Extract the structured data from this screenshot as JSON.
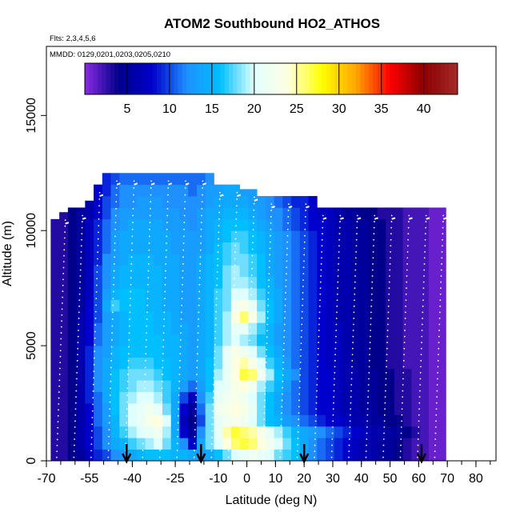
{
  "chart_data": {
    "type": "heatmap",
    "title": "ATOM2 Southbound HO2_ATHOS",
    "flights_note": "Flts: 2,3,4,5,6",
    "dates_note": "MMDD: 0129,0201,0203,0205,0210",
    "xlabel": "Latitude (deg N)",
    "ylabel": "Altitude (m)",
    "xlim": [
      -70,
      87
    ],
    "ylim": [
      0,
      18000
    ],
    "x_ticks": [
      -70,
      -55,
      -40,
      -25,
      -10,
      0,
      10,
      20,
      30,
      40,
      50,
      60,
      70,
      80
    ],
    "y_ticks": [
      0,
      5000,
      10000,
      15000
    ],
    "colorbar": {
      "range": [
        0,
        44
      ],
      "ticks": [
        5,
        10,
        15,
        20,
        25,
        30,
        35,
        40
      ],
      "colors": [
        "#8a2be2",
        "#00008b",
        "#0000cd",
        "#1e90ff",
        "#00bfff",
        "#e0ffff",
        "#ffffe0",
        "#ffff00",
        "#ffa500",
        "#ff0000",
        "#8b0000",
        "#a52a2a"
      ],
      "placement": "top"
    },
    "arrow_latitudes": [
      -42,
      -16,
      20,
      61
    ],
    "lat_columns": [
      -67,
      -64,
      -61,
      -58,
      -55,
      -52,
      -49,
      -46,
      -43,
      -40,
      -37,
      -34,
      -31,
      -28,
      -25,
      -22,
      -19,
      -16,
      -13,
      -10,
      -7,
      -4,
      -1,
      2,
      5,
      8,
      11,
      14,
      17,
      20,
      23,
      26,
      29,
      32,
      35,
      38,
      41,
      44,
      47,
      50,
      53,
      56,
      59,
      62,
      65,
      68
    ],
    "column_tops_m": [
      10500,
      10800,
      11000,
      11000,
      11300,
      12000,
      12500,
      12500,
      12500,
      12500,
      12500,
      12500,
      12500,
      12500,
      12500,
      12500,
      12500,
      12500,
      12500,
      12000,
      12000,
      12000,
      11800,
      11800,
      11500,
      11500,
      11500,
      11500,
      11500,
      11500,
      11500,
      11000,
      11000,
      11000,
      11000,
      11000,
      11000,
      11000,
      11000,
      11000,
      11000,
      11000,
      11000,
      11000,
      11000,
      11000
    ],
    "alt_rows_m": [
      250,
      750,
      1250,
      1750,
      2250,
      2750,
      3250,
      3750,
      4250,
      4750,
      5250,
      5750,
      6250,
      6750,
      7250,
      7750,
      8250,
      8750,
      9250,
      9750,
      10250,
      10750,
      11250,
      11750,
      12250
    ],
    "ho2_grid_pptv": [
      [
        3,
        3,
        4,
        5,
        7,
        9,
        10,
        12,
        13,
        14,
        15,
        16,
        16,
        16,
        15,
        15,
        14,
        13,
        14,
        16,
        18,
        20,
        21,
        22,
        21,
        20,
        18,
        17,
        16,
        14,
        12,
        11,
        10,
        9,
        8,
        7,
        6,
        6,
        5,
        5,
        4,
        3,
        2,
        2,
        1,
        1
      ],
      [
        3,
        3,
        4,
        6,
        8,
        10,
        12,
        14,
        15,
        17,
        18,
        19,
        20,
        18,
        15,
        12,
        8,
        14,
        18,
        20,
        24,
        26,
        27,
        26,
        24,
        22,
        20,
        18,
        16,
        14,
        12,
        11,
        10,
        9,
        8,
        7,
        6,
        6,
        5,
        5,
        4,
        3,
        2,
        2,
        1,
        1
      ],
      [
        3,
        3,
        4,
        6,
        8,
        10,
        12,
        15,
        17,
        19,
        20,
        21,
        22,
        19,
        14,
        8,
        5,
        12,
        18,
        21,
        25,
        27,
        26,
        25,
        23,
        21,
        19,
        17,
        15,
        14,
        13,
        12,
        11,
        10,
        9,
        8,
        7,
        6,
        6,
        5,
        5,
        4,
        3,
        2,
        1,
        1
      ],
      [
        3,
        3,
        4,
        6,
        8,
        11,
        13,
        15,
        18,
        20,
        21,
        23,
        24,
        20,
        14,
        7,
        4,
        10,
        18,
        21,
        22,
        23,
        22,
        20,
        18,
        16,
        15,
        13,
        12,
        11,
        10,
        9,
        8,
        8,
        7,
        6,
        6,
        5,
        5,
        4,
        4,
        3,
        2,
        2,
        1,
        1
      ],
      [
        3,
        3,
        4,
        6,
        8,
        11,
        13,
        16,
        18,
        20,
        21,
        22,
        21,
        18,
        14,
        8,
        5,
        11,
        18,
        22,
        23,
        24,
        23,
        21,
        18,
        16,
        14,
        12,
        11,
        10,
        9,
        8,
        8,
        7,
        6,
        6,
        5,
        5,
        4,
        4,
        3,
        3,
        2,
        2,
        1,
        1
      ],
      [
        3,
        3,
        4,
        6,
        9,
        11,
        14,
        16,
        18,
        19,
        20,
        20,
        19,
        17,
        14,
        10,
        7,
        12,
        17,
        21,
        22,
        23,
        22,
        20,
        18,
        16,
        14,
        12,
        11,
        10,
        9,
        8,
        8,
        7,
        6,
        6,
        5,
        5,
        4,
        4,
        3,
        3,
        2,
        2,
        1,
        1
      ],
      [
        3,
        3,
        4,
        6,
        9,
        12,
        14,
        16,
        17,
        18,
        19,
        19,
        18,
        17,
        15,
        13,
        11,
        13,
        16,
        20,
        21,
        23,
        24,
        22,
        19,
        17,
        15,
        13,
        11,
        10,
        9,
        8,
        8,
        7,
        6,
        6,
        5,
        5,
        4,
        4,
        3,
        3,
        2,
        2,
        1,
        1
      ],
      [
        3,
        3,
        4,
        6,
        9,
        12,
        14,
        16,
        17,
        18,
        18,
        18,
        17,
        16,
        15,
        14,
        13,
        14,
        16,
        19,
        21,
        24,
        27,
        26,
        22,
        19,
        16,
        14,
        12,
        10,
        9,
        8,
        8,
        7,
        6,
        6,
        5,
        5,
        4,
        4,
        3,
        3,
        2,
        2,
        1,
        1
      ],
      [
        3,
        3,
        4,
        6,
        9,
        12,
        14,
        15,
        16,
        17,
        17,
        17,
        16,
        16,
        15,
        14,
        13,
        14,
        16,
        18,
        21,
        24,
        25,
        23,
        20,
        17,
        15,
        13,
        11,
        10,
        9,
        8,
        7,
        7,
        6,
        5,
        5,
        4,
        4,
        3,
        3,
        2,
        2,
        2,
        1,
        1
      ],
      [
        3,
        3,
        4,
        6,
        9,
        12,
        13,
        15,
        16,
        16,
        16,
        16,
        16,
        15,
        15,
        14,
        13,
        14,
        15,
        18,
        21,
        23,
        22,
        20,
        18,
        16,
        14,
        12,
        11,
        10,
        9,
        8,
        7,
        7,
        6,
        5,
        5,
        4,
        4,
        3,
        3,
        2,
        2,
        2,
        1,
        1
      ],
      [
        3,
        3,
        4,
        6,
        8,
        11,
        13,
        14,
        15,
        16,
        16,
        16,
        16,
        15,
        15,
        14,
        13,
        14,
        15,
        17,
        19,
        20,
        19,
        18,
        16,
        15,
        13,
        12,
        11,
        10,
        9,
        8,
        7,
        7,
        6,
        5,
        5,
        4,
        4,
        3,
        3,
        2,
        2,
        2,
        1,
        1
      ],
      [
        3,
        3,
        4,
        6,
        8,
        11,
        13,
        14,
        15,
        16,
        16,
        16,
        15,
        15,
        14,
        14,
        13,
        14,
        15,
        17,
        19,
        21,
        21,
        19,
        17,
        15,
        13,
        12,
        11,
        10,
        9,
        8,
        7,
        7,
        6,
        5,
        5,
        4,
        4,
        3,
        3,
        2,
        2,
        2,
        1,
        1
      ],
      [
        3,
        3,
        4,
        6,
        8,
        10,
        13,
        14,
        15,
        16,
        16,
        16,
        15,
        15,
        14,
        13,
        13,
        14,
        15,
        17,
        19,
        24,
        26,
        23,
        19,
        16,
        14,
        12,
        11,
        10,
        9,
        8,
        7,
        6,
        6,
        5,
        5,
        4,
        4,
        3,
        3,
        2,
        2,
        2,
        1,
        1
      ],
      [
        3,
        3,
        4,
        5,
        8,
        10,
        14,
        17,
        16,
        16,
        16,
        15,
        15,
        14,
        14,
        13,
        13,
        14,
        15,
        17,
        18,
        22,
        23,
        21,
        18,
        16,
        14,
        12,
        11,
        10,
        9,
        8,
        7,
        6,
        6,
        5,
        5,
        4,
        4,
        3,
        3,
        2,
        2,
        2,
        1,
        1
      ],
      [
        3,
        3,
        4,
        5,
        7,
        10,
        13,
        15,
        16,
        16,
        16,
        15,
        15,
        14,
        14,
        13,
        13,
        14,
        15,
        17,
        18,
        20,
        20,
        19,
        17,
        15,
        14,
        12,
        11,
        10,
        9,
        8,
        7,
        6,
        6,
        5,
        5,
        4,
        4,
        3,
        3,
        2,
        2,
        2,
        1,
        1
      ],
      [
        3,
        3,
        4,
        5,
        7,
        10,
        12,
        14,
        15,
        15,
        15,
        15,
        15,
        14,
        14,
        13,
        13,
        14,
        15,
        16,
        18,
        19,
        19,
        18,
        16,
        15,
        13,
        12,
        11,
        10,
        9,
        8,
        7,
        6,
        6,
        5,
        5,
        4,
        4,
        3,
        3,
        2,
        2,
        2,
        1,
        1
      ],
      [
        3,
        3,
        4,
        5,
        7,
        10,
        12,
        14,
        15,
        15,
        15,
        15,
        15,
        14,
        14,
        13,
        13,
        14,
        15,
        16,
        18,
        19,
        18,
        17,
        16,
        14,
        13,
        12,
        11,
        10,
        9,
        8,
        7,
        6,
        6,
        5,
        5,
        4,
        4,
        3,
        3,
        2,
        2,
        2,
        1,
        1
      ],
      [
        3,
        3,
        4,
        5,
        7,
        9,
        12,
        13,
        14,
        15,
        15,
        15,
        14,
        14,
        14,
        13,
        13,
        14,
        15,
        16,
        17,
        18,
        18,
        17,
        16,
        14,
        13,
        12,
        11,
        10,
        9,
        8,
        7,
        6,
        6,
        5,
        5,
        4,
        4,
        3,
        3,
        2,
        2,
        2,
        1,
        1
      ],
      [
        3,
        3,
        4,
        5,
        7,
        9,
        11,
        13,
        14,
        14,
        14,
        14,
        14,
        14,
        13,
        13,
        13,
        13,
        14,
        16,
        17,
        18,
        17,
        16,
        15,
        14,
        13,
        12,
        11,
        10,
        9,
        8,
        7,
        6,
        6,
        5,
        5,
        4,
        4,
        3,
        3,
        2,
        2,
        2,
        1,
        1
      ],
      [
        3,
        3,
        4,
        5,
        7,
        9,
        11,
        13,
        14,
        14,
        14,
        14,
        14,
        14,
        13,
        13,
        13,
        13,
        14,
        15,
        16,
        17,
        17,
        16,
        15,
        14,
        13,
        12,
        11,
        10,
        9,
        8,
        7,
        6,
        6,
        5,
        5,
        4,
        4,
        3,
        3,
        2,
        2,
        2,
        1,
        1
      ],
      [
        3,
        3,
        4,
        5,
        7,
        9,
        11,
        12,
        13,
        14,
        14,
        14,
        14,
        13,
        13,
        13,
        12,
        13,
        14,
        15,
        16,
        16,
        16,
        15,
        14,
        13,
        12,
        11,
        10,
        9,
        8,
        8,
        7,
        6,
        6,
        5,
        5,
        4,
        4,
        3,
        3,
        2,
        2,
        2,
        1,
        1
      ],
      [
        3,
        3,
        4,
        5,
        6,
        8,
        10,
        12,
        13,
        13,
        13,
        13,
        13,
        13,
        13,
        12,
        12,
        13,
        14,
        14,
        15,
        15,
        15,
        14,
        13,
        12,
        12,
        11,
        10,
        9,
        8,
        7,
        7,
        6,
        5,
        5,
        4,
        4,
        3,
        3,
        3,
        2,
        2,
        2,
        1,
        1
      ],
      [
        3,
        3,
        4,
        5,
        6,
        8,
        10,
        11,
        12,
        12,
        13,
        13,
        13,
        12,
        12,
        12,
        12,
        12,
        13,
        14,
        14,
        14,
        14,
        13,
        13,
        12,
        11,
        10,
        9,
        9,
        8,
        7,
        7,
        6,
        5,
        5,
        4,
        4,
        3,
        3,
        3,
        2,
        2,
        2,
        1,
        1
      ],
      [
        3,
        3,
        4,
        5,
        6,
        8,
        9,
        11,
        12,
        12,
        12,
        12,
        12,
        12,
        12,
        12,
        11,
        12,
        13,
        13,
        14,
        14,
        13,
        13,
        12,
        11,
        11,
        10,
        9,
        8,
        8,
        7,
        6,
        6,
        5,
        5,
        4,
        4,
        3,
        3,
        2,
        2,
        2,
        2,
        1,
        1
      ],
      [
        3,
        3,
        4,
        5,
        6,
        7,
        9,
        10,
        11,
        11,
        11,
        11,
        11,
        11,
        11,
        11,
        11,
        11,
        12,
        13,
        13,
        13,
        13,
        12,
        12,
        11,
        10,
        10,
        9,
        8,
        8,
        7,
        6,
        6,
        5,
        4,
        4,
        3,
        3,
        3,
        2,
        2,
        2,
        1,
        1,
        1
      ]
    ]
  }
}
